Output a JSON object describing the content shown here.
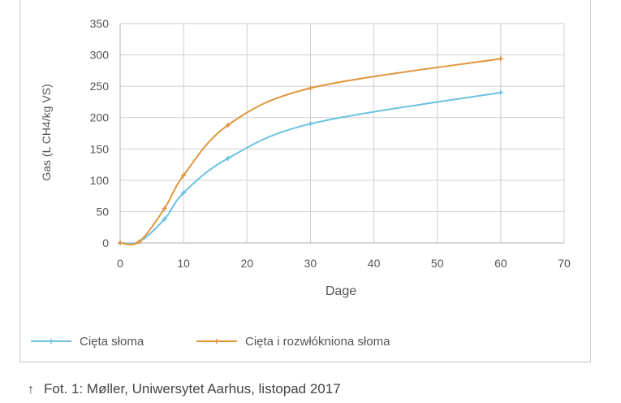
{
  "chart_data": {
    "type": "line",
    "xlabel": "Dage",
    "ylabel": "Gas (L CH4/kg VS)",
    "xlim": [
      0,
      70
    ],
    "ylim": [
      0,
      350
    ],
    "xticks": [
      "0",
      "10",
      "20",
      "30",
      "40",
      "50",
      "60",
      "70"
    ],
    "yticks": [
      "0",
      "50",
      "100",
      "150",
      "200",
      "250",
      "300",
      "350"
    ],
    "grid": true,
    "legend_position": "bottom-left",
    "series": [
      {
        "name": "Cięta słoma",
        "color": "#6cc2e0",
        "x": [
          0,
          3,
          7,
          10,
          17,
          30,
          60
        ],
        "y": [
          0,
          2,
          38,
          80,
          135,
          190,
          240
        ]
      },
      {
        "name": "Cięta i rozwłókniona słoma",
        "color": "#e0963c",
        "x": [
          0,
          3,
          7,
          10,
          17,
          30,
          60
        ],
        "y": [
          0,
          2,
          55,
          108,
          188,
          247,
          294
        ]
      }
    ]
  },
  "caption": {
    "icon": "arrow-up-icon",
    "text": "Fot. 1: Møller, Uniwersytet Aarhus, listopad 2017"
  }
}
